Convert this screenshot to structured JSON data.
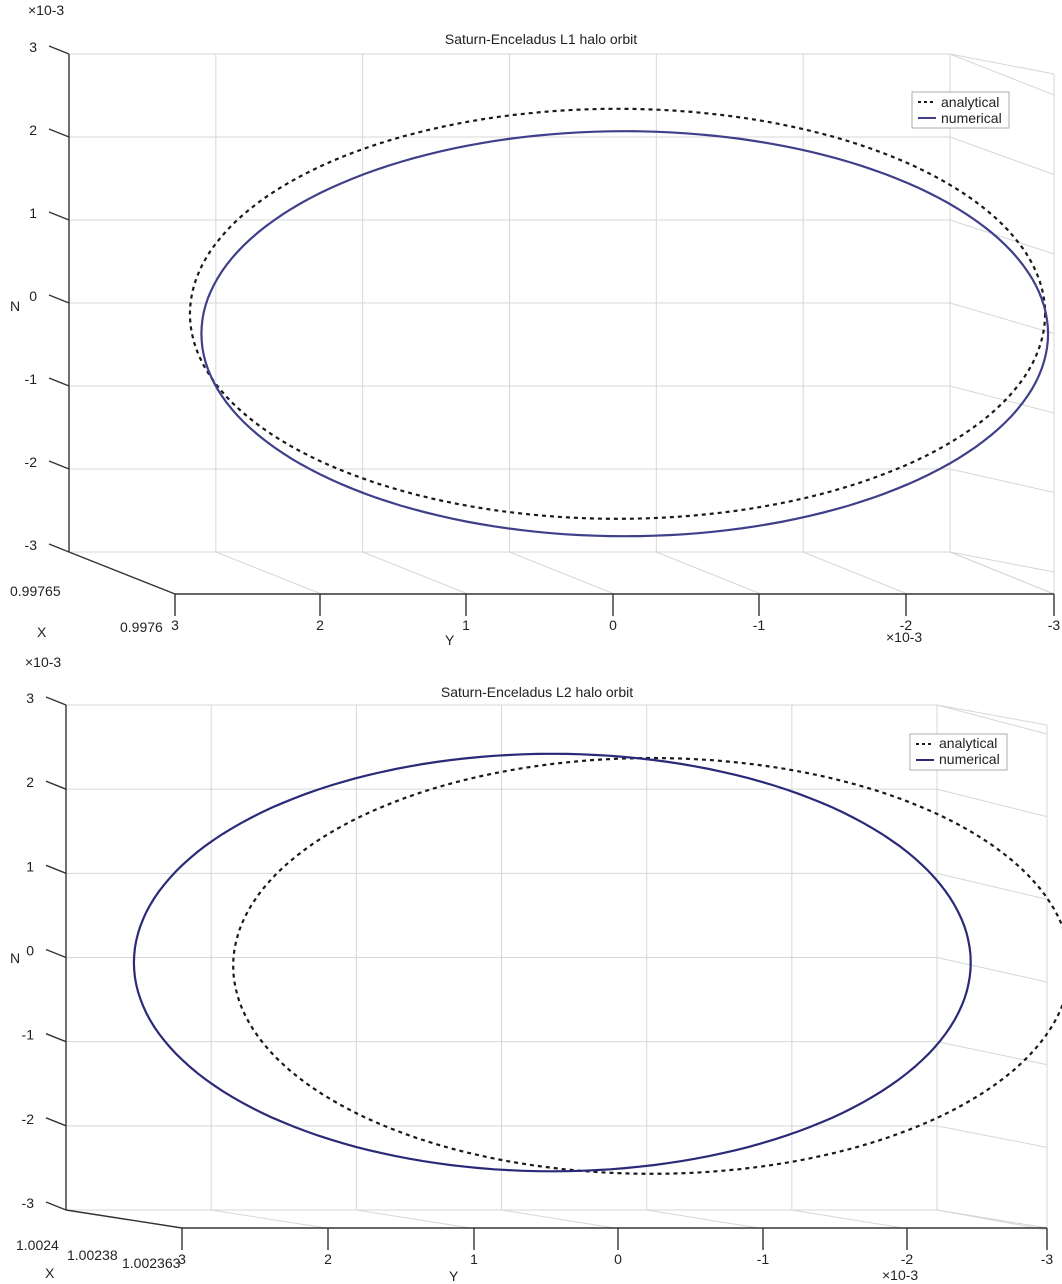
{
  "chart_data": [
    {
      "type": "line",
      "title": "Saturn-Enceladus L1 halo orbit",
      "xlabel": "Y",
      "ylabel": "N",
      "depth_label": "X",
      "y_axis_ticks": [
        "3",
        "2",
        "1",
        "0",
        "-1",
        "-2",
        "-3"
      ],
      "y_axis_exponent": "×10-3",
      "x_axis_ticks": [
        "3",
        "2",
        "1",
        "0",
        "-1",
        "-2",
        "-3"
      ],
      "x_axis_exponent": "×10-3",
      "depth_ticks": [
        "0.99765",
        "0.9976"
      ],
      "xlim": [
        3,
        -3
      ],
      "ylim": [
        -3,
        3
      ],
      "grid": true,
      "legend_position": "top-right",
      "series": [
        {
          "name": "analytical",
          "style": "dashed",
          "color": "#1a1a1a",
          "center_y": -0.3,
          "center_n": -0.13,
          "semi_axis_y": 2.98,
          "semi_axis_n": 2.47
        },
        {
          "name": "numerical",
          "style": "solid",
          "color": "#3f3f8a",
          "center_y": -0.35,
          "center_n": -0.37,
          "semi_axis_y": 2.95,
          "semi_axis_n": 2.44
        }
      ]
    },
    {
      "type": "line",
      "title": "Saturn-Enceladus L2 halo orbit",
      "xlabel": "Y",
      "ylabel": "N",
      "depth_label": "X",
      "y_axis_ticks": [
        "3",
        "2",
        "1",
        "0",
        "-1",
        "-2",
        "-3"
      ],
      "y_axis_exponent": "×10-3",
      "x_axis_ticks": [
        "3",
        "2",
        "1",
        "0",
        "-1",
        "-2",
        "-3"
      ],
      "x_axis_exponent": "×10-3",
      "depth_ticks": [
        "1.0024",
        "1.00238",
        "1.002363"
      ],
      "xlim": [
        3,
        -3
      ],
      "ylim": [
        -3,
        3
      ],
      "grid": true,
      "legend_position": "top-right",
      "series": [
        {
          "name": "analytical",
          "style": "dashed",
          "color": "#1a1a1a",
          "center_y": -0.6,
          "center_n": -0.1,
          "semi_axis_y": 2.95,
          "semi_axis_n": 2.47
        },
        {
          "name": "numerical",
          "style": "solid",
          "color": "#2a2a78",
          "center_y": 0.1,
          "center_n": -0.06,
          "semi_axis_y": 2.95,
          "semi_axis_n": 2.48
        }
      ]
    }
  ]
}
